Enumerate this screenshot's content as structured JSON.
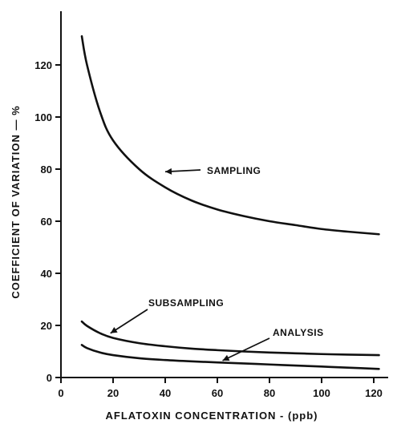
{
  "chart_data": {
    "type": "line",
    "title": "",
    "xlabel": "AFLATOXIN  CONCENTRATION - (ppb)",
    "ylabel": "COEFFICIENT  OF  VARIATION — %",
    "xlim": [
      0,
      125
    ],
    "ylim": [
      0,
      140
    ],
    "xticks": [
      "0",
      "20",
      "40",
      "60",
      "80",
      "100",
      "120"
    ],
    "yticks": [
      "0",
      "20",
      "40",
      "60",
      "80",
      "100",
      "120"
    ],
    "grid": false,
    "legend": "none",
    "series": [
      {
        "name": "SAMPLING",
        "x": [
          8,
          10,
          15,
          20,
          30,
          40,
          50,
          60,
          70,
          80,
          90,
          100,
          110,
          122
        ],
        "values": [
          131,
          120,
          102,
          91,
          80,
          73,
          68,
          64.5,
          62,
          60,
          58.5,
          57,
          56,
          55
        ]
      },
      {
        "name": "SUBSAMPLING",
        "x": [
          8,
          10,
          15,
          20,
          30,
          40,
          50,
          60,
          70,
          80,
          90,
          100,
          110,
          122
        ],
        "values": [
          21.5,
          19.8,
          17,
          15.2,
          13.2,
          12,
          11.1,
          10.5,
          10,
          9.6,
          9.3,
          9,
          8.8,
          8.6
        ]
      },
      {
        "name": "ANALYSIS",
        "x": [
          8,
          10,
          15,
          20,
          30,
          40,
          50,
          60,
          70,
          80,
          90,
          100,
          110,
          122
        ],
        "values": [
          12.5,
          11.3,
          9.6,
          8.6,
          7.4,
          6.7,
          6.2,
          5.8,
          5.4,
          5,
          4.6,
          4.2,
          3.8,
          3.3
        ]
      }
    ],
    "annotations": [
      {
        "text": "SAMPLING",
        "series": 0,
        "x": 40,
        "y": 79
      },
      {
        "text": "SUBSAMPLING",
        "series": 1,
        "x": 19,
        "y": 17
      },
      {
        "text": "ANALYSIS",
        "series": 2,
        "x": 62,
        "y": 6.5
      }
    ]
  }
}
